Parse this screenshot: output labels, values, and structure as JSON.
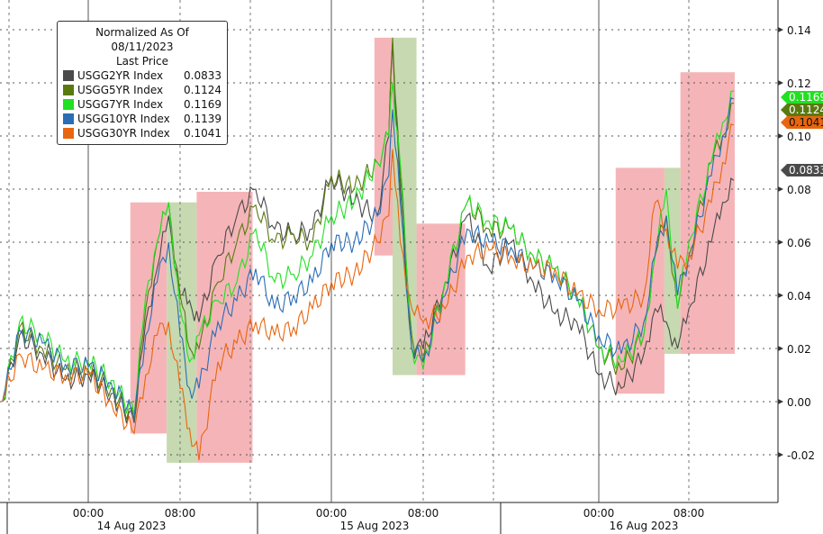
{
  "chart_data": {
    "type": "line",
    "legend": {
      "title": "Normalized As Of 08/11/2023",
      "subtitle": "Last Price",
      "placement": "top-left"
    },
    "y_axis": {
      "side": "right",
      "ylim": [
        -0.035,
        0.15
      ],
      "ticks": [
        -0.02,
        0.0,
        0.02,
        0.04,
        0.06,
        0.08,
        0.1,
        0.12,
        0.14
      ],
      "tick_labels": [
        "-0.02",
        "0.00",
        "0.02",
        "0.04",
        "0.06",
        "0.08",
        "0.10",
        "0.12",
        "0.14"
      ],
      "grid": true
    },
    "x_axis": {
      "time_ticks": [
        "00:00",
        "08:00",
        "00:00",
        "08:00",
        "00:00",
        "08:00"
      ],
      "tick_times": [
        "2023-08-14 00:00",
        "2023-08-14 08:00",
        "2023-08-15 00:00",
        "2023-08-15 08:00",
        "2023-08-16 00:00",
        "2023-08-16 08:00"
      ],
      "date_labels": [
        "14 Aug 2023",
        "15 Aug 2023",
        "16 Aug 2023"
      ]
    },
    "x": [
      "2023-08-13 16:30",
      "2023-08-13 18:00",
      "2023-08-13 20:00",
      "2023-08-13 22:00",
      "2023-08-14 00:00",
      "2023-08-14 02:00",
      "2023-08-14 04:00",
      "2023-08-14 05:00",
      "2023-08-14 06:00",
      "2023-08-14 07:00",
      "2023-08-14 08:00",
      "2023-08-14 09:00",
      "2023-08-14 10:00",
      "2023-08-14 12:00",
      "2023-08-14 14:00",
      "2023-08-14 16:00",
      "2023-08-14 18:00",
      "2023-08-14 20:00",
      "2023-08-14 22:00",
      "2023-08-15 00:00",
      "2023-08-15 02:00",
      "2023-08-15 04:00",
      "2023-08-15 05:00",
      "2023-08-15 05:20",
      "2023-08-15 06:00",
      "2023-08-15 07:00",
      "2023-08-15 08:00",
      "2023-08-15 10:00",
      "2023-08-15 12:00",
      "2023-08-15 14:00",
      "2023-08-15 16:00",
      "2023-08-15 18:00",
      "2023-08-15 20:00",
      "2023-08-15 22:00",
      "2023-08-16 00:00",
      "2023-08-16 02:00",
      "2023-08-16 04:00",
      "2023-08-16 05:00",
      "2023-08-16 06:00",
      "2023-08-16 07:00",
      "2023-08-16 08:00",
      "2023-08-16 10:00",
      "2023-08-16 11:00",
      "2023-08-16 12:00"
    ],
    "series": [
      {
        "name": "USGG2YR Index",
        "last": "0.0833",
        "color": "#4a4a4a",
        "values": [
          0.0,
          0.025,
          0.018,
          0.008,
          0.01,
          0.003,
          -0.008,
          0.03,
          0.05,
          0.07,
          0.04,
          0.038,
          0.03,
          0.055,
          0.07,
          0.08,
          0.065,
          0.063,
          0.065,
          0.085,
          0.075,
          0.07,
          0.1,
          0.135,
          0.08,
          0.02,
          0.02,
          0.045,
          0.07,
          0.05,
          0.06,
          0.045,
          0.033,
          0.03,
          0.01,
          0.005,
          0.018,
          0.035,
          0.03,
          0.02,
          0.035,
          0.06,
          0.075,
          0.0833
        ]
      },
      {
        "name": "USGG5YR Index",
        "last": "0.1124",
        "color": "#5a7a10",
        "values": [
          0.0,
          0.028,
          0.02,
          0.012,
          0.012,
          0.005,
          -0.007,
          0.035,
          0.06,
          0.075,
          0.04,
          0.02,
          0.02,
          0.045,
          0.06,
          0.074,
          0.06,
          0.063,
          0.06,
          0.085,
          0.08,
          0.09,
          0.1,
          0.137,
          0.085,
          0.025,
          0.015,
          0.045,
          0.075,
          0.065,
          0.065,
          0.055,
          0.05,
          0.04,
          0.02,
          0.012,
          0.025,
          0.055,
          0.07,
          0.035,
          0.055,
          0.09,
          0.1,
          0.1124
        ]
      },
      {
        "name": "USGG7YR Index",
        "last": "0.1169",
        "color": "#22e022",
        "values": [
          0.0,
          0.03,
          0.025,
          0.015,
          0.015,
          0.008,
          -0.005,
          0.04,
          0.06,
          0.075,
          0.035,
          0.015,
          0.025,
          0.038,
          0.045,
          0.065,
          0.045,
          0.048,
          0.055,
          0.07,
          0.075,
          0.09,
          0.1,
          0.12,
          0.09,
          0.02,
          0.012,
          0.045,
          0.075,
          0.068,
          0.065,
          0.055,
          0.05,
          0.04,
          0.02,
          0.015,
          0.025,
          0.055,
          0.08,
          0.035,
          0.06,
          0.09,
          0.105,
          0.1169
        ]
      },
      {
        "name": "USGG10YR Index",
        "last": "0.1139",
        "color": "#2a6db5",
        "values": [
          0.0,
          0.027,
          0.022,
          0.014,
          0.013,
          0.007,
          -0.006,
          0.025,
          0.045,
          0.06,
          0.025,
          0.005,
          0.005,
          0.03,
          0.038,
          0.05,
          0.035,
          0.04,
          0.045,
          0.06,
          0.06,
          0.07,
          0.085,
          0.11,
          0.075,
          0.02,
          0.015,
          0.04,
          0.065,
          0.06,
          0.058,
          0.05,
          0.048,
          0.038,
          0.025,
          0.018,
          0.03,
          0.055,
          0.07,
          0.04,
          0.055,
          0.085,
          0.1,
          0.1139
        ]
      },
      {
        "name": "USGG30YR Index",
        "last": "0.1041",
        "color": "#e8660f",
        "values": [
          0.0,
          0.018,
          0.012,
          0.01,
          0.01,
          0.0,
          -0.012,
          0.01,
          0.025,
          0.03,
          0.005,
          -0.01,
          -0.022,
          0.015,
          0.022,
          0.03,
          0.025,
          0.028,
          0.035,
          0.045,
          0.048,
          0.06,
          0.07,
          0.095,
          0.06,
          0.035,
          0.03,
          0.035,
          0.055,
          0.057,
          0.055,
          0.05,
          0.05,
          0.04,
          0.035,
          0.035,
          0.04,
          0.075,
          0.065,
          0.05,
          0.055,
          0.075,
          0.09,
          0.1041
        ]
      }
    ],
    "highlight_regions": [
      {
        "color": "red",
        "from": "2023-08-14 03:40",
        "to": "2023-08-14 06:50",
        "y": [
          -0.012,
          0.075
        ]
      },
      {
        "color": "green",
        "from": "2023-08-14 06:50",
        "to": "2023-08-14 09:45",
        "y": [
          -0.023,
          0.075
        ]
      },
      {
        "color": "red",
        "from": "2023-08-14 09:45",
        "to": "2023-08-14 15:40",
        "y": [
          -0.023,
          0.079
        ]
      },
      {
        "color": "red",
        "from": "2023-08-15 03:45",
        "to": "2023-08-15 05:20",
        "y": [
          0.055,
          0.137
        ]
      },
      {
        "color": "green",
        "from": "2023-08-15 05:20",
        "to": "2023-08-15 07:25",
        "y": [
          0.01,
          0.137
        ]
      },
      {
        "color": "red",
        "from": "2023-08-15 07:25",
        "to": "2023-08-15 11:50",
        "y": [
          0.01,
          0.067
        ]
      },
      {
        "color": "red",
        "from": "2023-08-16 01:30",
        "to": "2023-08-16 05:50",
        "y": [
          0.003,
          0.088
        ]
      },
      {
        "color": "green",
        "from": "2023-08-16 05:50",
        "to": "2023-08-16 07:15",
        "y": [
          0.018,
          0.088
        ]
      },
      {
        "color": "red",
        "from": "2023-08-16 07:15",
        "to": "2023-08-16 12:05",
        "y": [
          0.018,
          0.124
        ]
      }
    ],
    "region_colors": {
      "red": "#f5b5b8",
      "green": "#c6d9b0"
    }
  }
}
